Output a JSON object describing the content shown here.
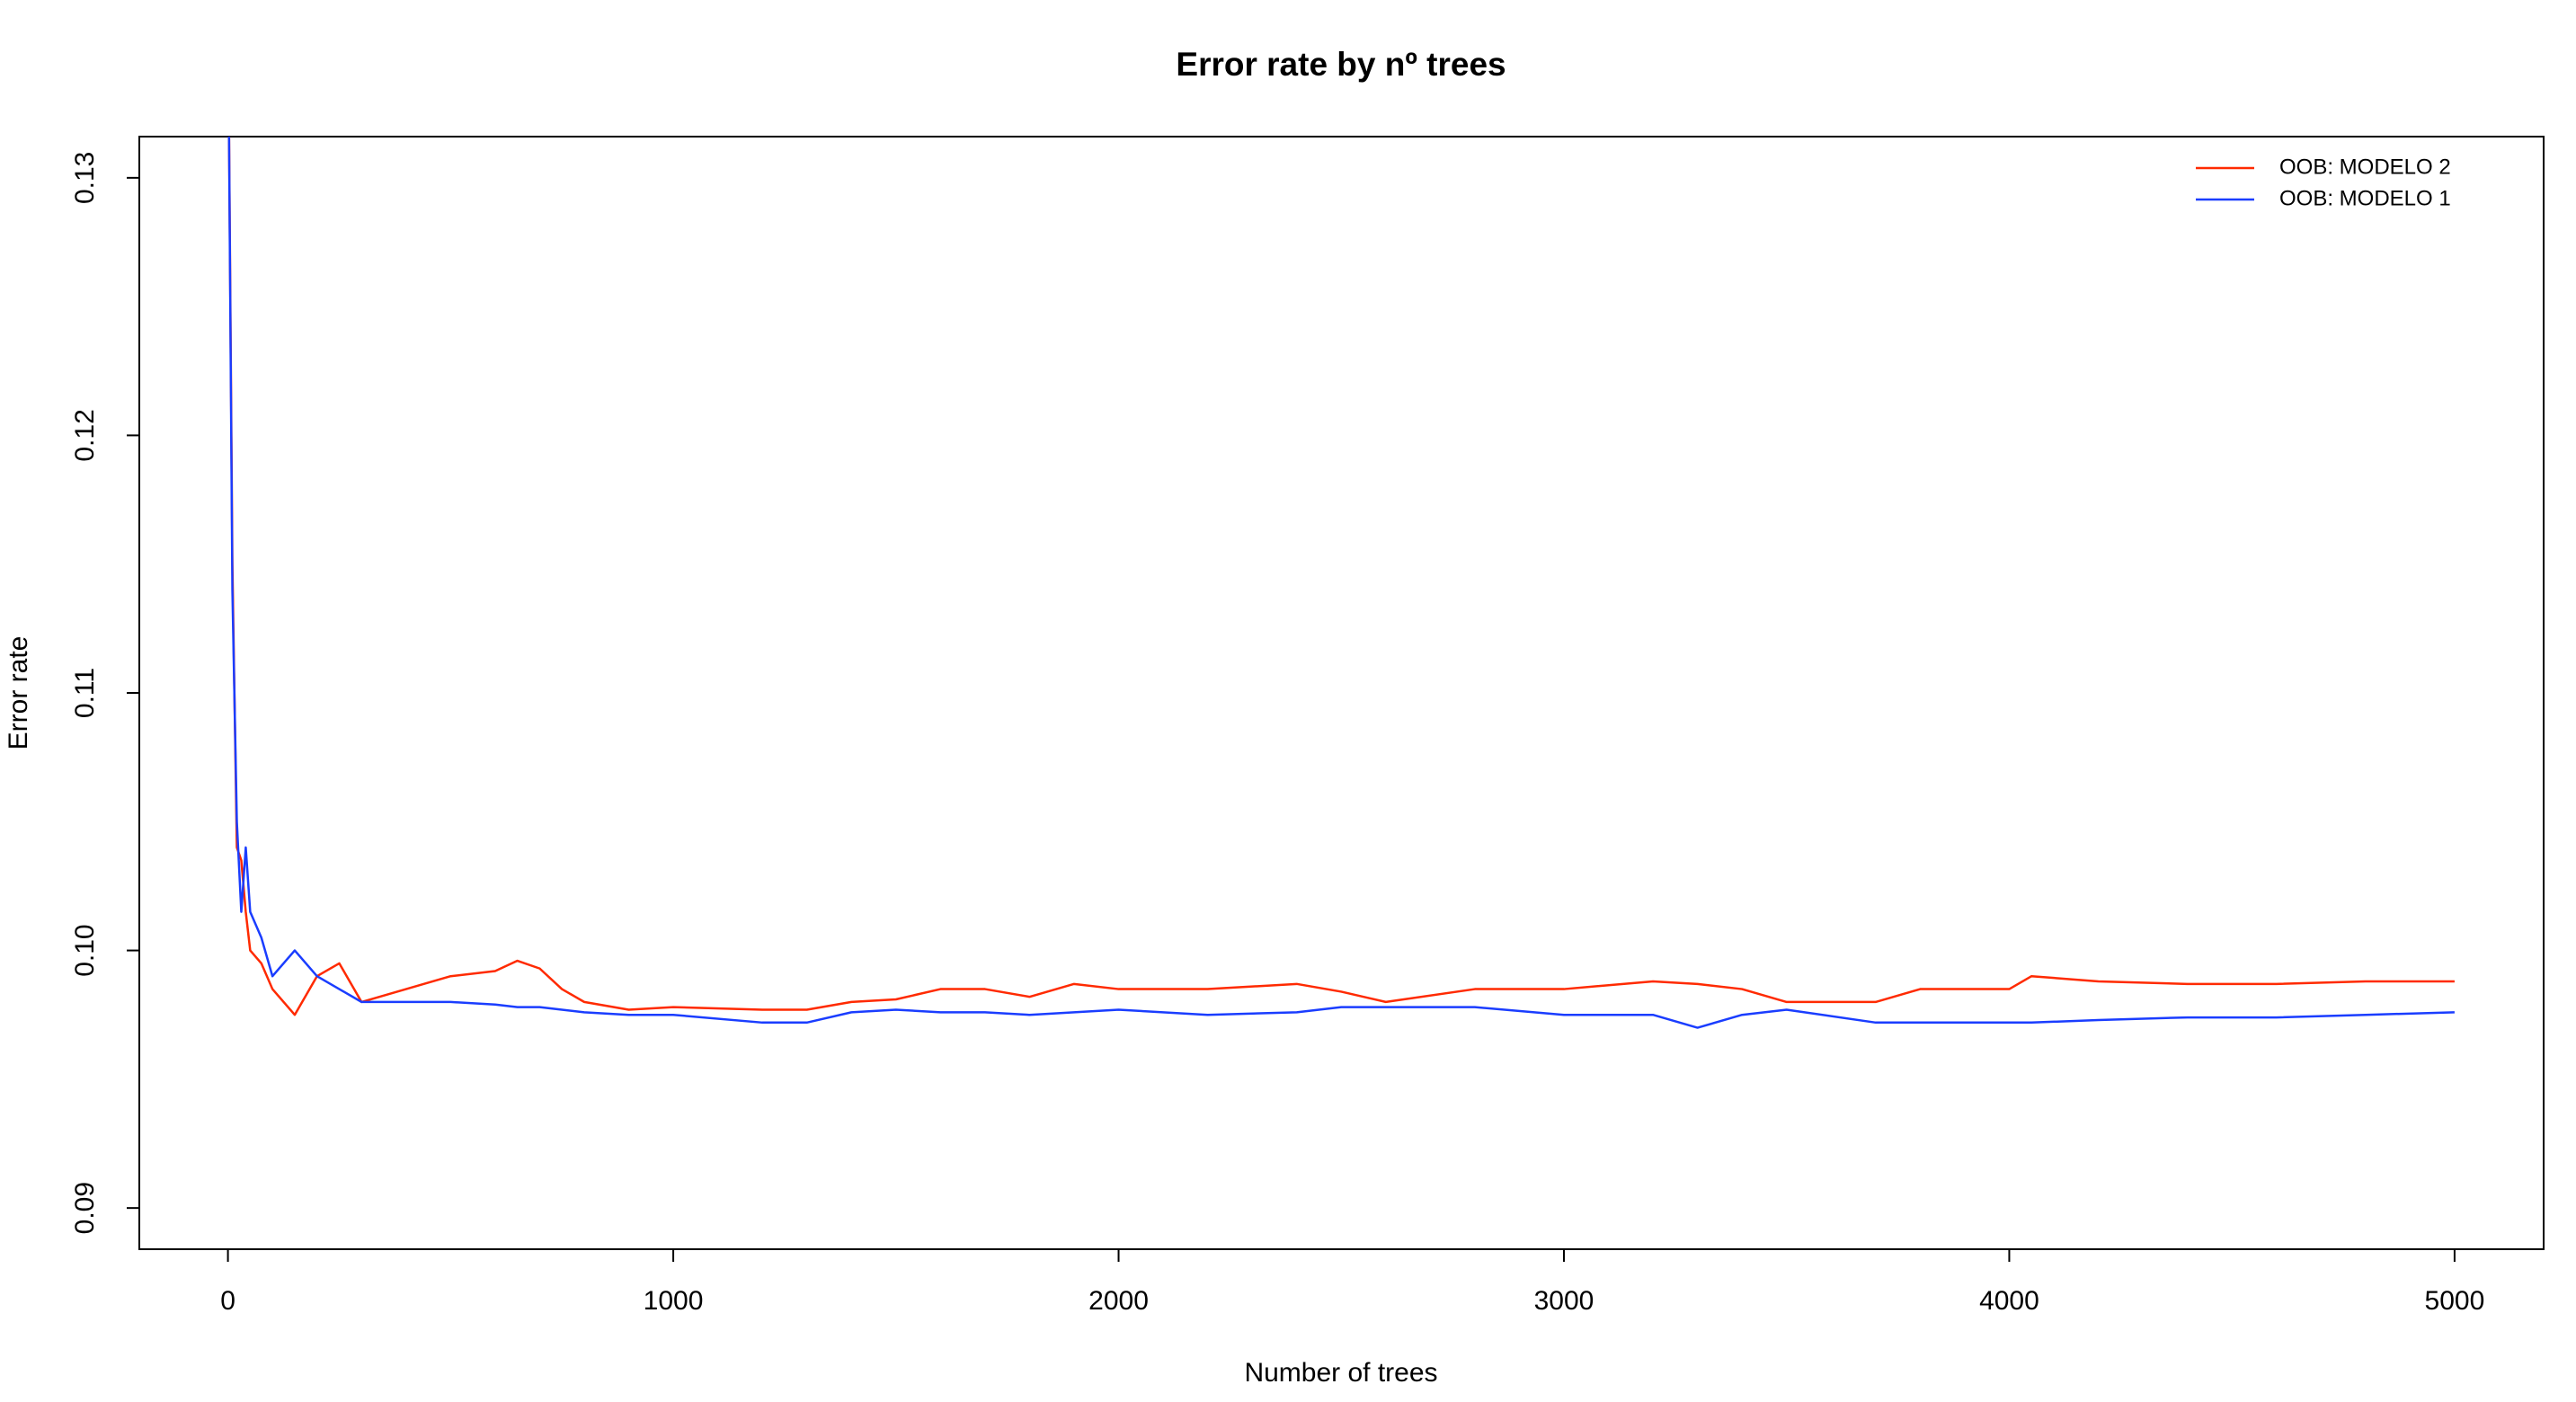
{
  "chart_data": {
    "type": "line",
    "title": "Error rate by nº trees",
    "xlabel": "Number of trees",
    "ylabel": "Error rate",
    "x": [
      1,
      10,
      20,
      30,
      40,
      50,
      75,
      100,
      150,
      200,
      250,
      300,
      400,
      500,
      600,
      650,
      700,
      750,
      800,
      900,
      1000,
      1200,
      1300,
      1400,
      1500,
      1600,
      1700,
      1800,
      1900,
      2000,
      2200,
      2400,
      2500,
      2600,
      2800,
      3000,
      3200,
      3300,
      3400,
      3500,
      3700,
      3800,
      4000,
      4050,
      4200,
      4400,
      4600,
      4800,
      5000
    ],
    "series": [
      {
        "name": "OOB: MODELO 2",
        "color": "#ff2a00",
        "values": [
          0.135,
          0.115,
          0.104,
          0.1035,
          0.1015,
          0.1,
          0.0995,
          0.0985,
          0.0975,
          0.099,
          0.0995,
          0.098,
          0.0985,
          0.099,
          0.0992,
          0.0996,
          0.0993,
          0.0985,
          0.098,
          0.0977,
          0.0978,
          0.0977,
          0.0977,
          0.098,
          0.0981,
          0.0985,
          0.0985,
          0.0982,
          0.0987,
          0.0985,
          0.0985,
          0.0987,
          0.0984,
          0.098,
          0.0985,
          0.0985,
          0.0988,
          0.0987,
          0.0985,
          0.098,
          0.098,
          0.0985,
          0.0985,
          0.099,
          0.0988,
          0.0987,
          0.0987,
          0.0988,
          0.0988
        ]
      },
      {
        "name": "OOB: MODELO 1",
        "color": "#1a3dff",
        "values": [
          0.135,
          0.114,
          0.105,
          0.1015,
          0.104,
          0.1015,
          0.1005,
          0.099,
          0.1,
          0.099,
          0.0985,
          0.098,
          0.098,
          0.098,
          0.0979,
          0.0978,
          0.0978,
          0.0977,
          0.0976,
          0.0975,
          0.0975,
          0.0972,
          0.0972,
          0.0976,
          0.0977,
          0.0976,
          0.0976,
          0.0975,
          0.0976,
          0.0977,
          0.0975,
          0.0976,
          0.0978,
          0.0978,
          0.0978,
          0.0975,
          0.0975,
          0.097,
          0.0975,
          0.0977,
          0.0972,
          0.0972,
          0.0972,
          0.0972,
          0.0973,
          0.0974,
          0.0974,
          0.0975,
          0.0976
        ]
      }
    ],
    "xlim": [
      -199,
      5200
    ],
    "xticks": [
      0,
      1000,
      2000,
      3000,
      4000,
      5000
    ],
    "ylim": [
      0.0884,
      0.1316
    ],
    "yticks": [
      0.09,
      {
        "value": 0.1,
        "label": "0.10"
      },
      0.11,
      0.12,
      0.13
    ],
    "legend": "topright"
  }
}
